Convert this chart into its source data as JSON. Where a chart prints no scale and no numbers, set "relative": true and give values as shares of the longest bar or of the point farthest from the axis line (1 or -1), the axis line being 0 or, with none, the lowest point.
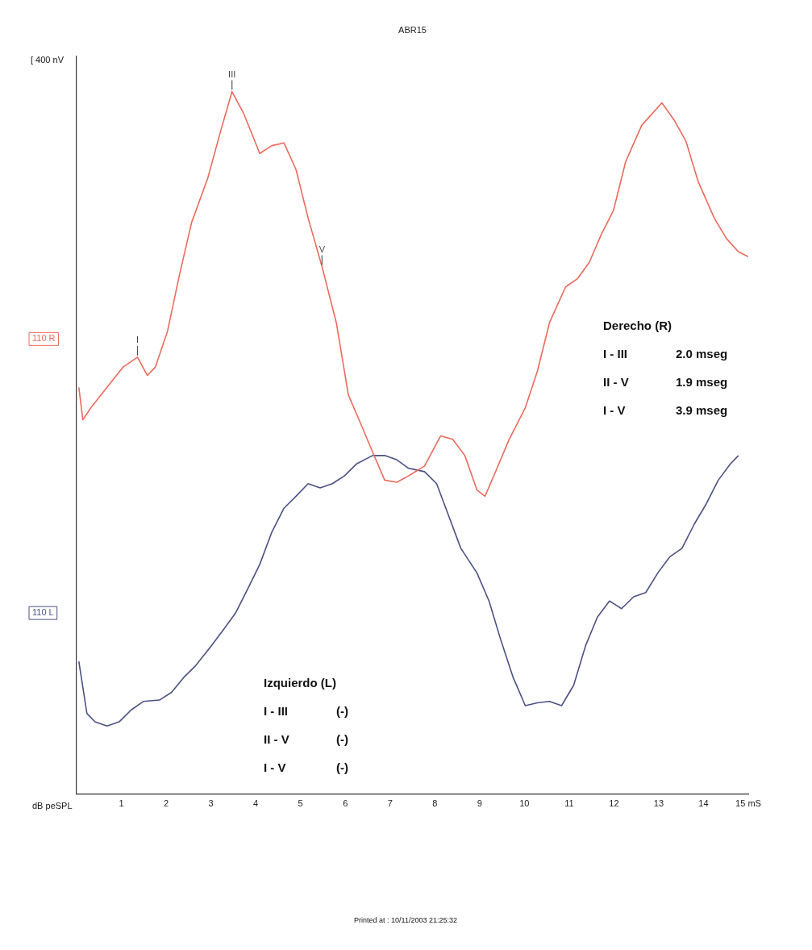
{
  "chart_data": {
    "type": "line",
    "title": "ABR15",
    "relative": true,
    "legend": false,
    "grid": false,
    "marker": "none",
    "line_style": "solid",
    "xlim": [
      0,
      15
    ],
    "xticks": [
      1,
      2,
      3,
      4,
      5,
      6,
      7,
      8,
      9,
      10,
      11,
      12,
      13,
      14,
      {
        "value": 15,
        "label": "15 mS"
      }
    ],
    "series": [
      {
        "name": "110 R",
        "color": "#ec6a5c",
        "x": [
          0.05,
          0.14,
          0.32,
          0.68,
          1.04,
          1.36,
          1.58,
          1.76,
          2.03,
          2.3,
          2.57,
          2.93,
          3.2,
          3.47,
          3.73,
          4.09,
          4.36,
          4.63,
          4.9,
          5.17,
          5.48,
          5.8,
          6.07,
          6.34,
          6.61,
          6.88,
          7.15,
          7.41,
          7.77,
          8.13,
          8.4,
          8.67,
          8.94,
          9.12,
          9.39,
          9.66,
          10.02,
          10.29,
          10.56,
          10.92,
          11.19,
          11.45,
          11.72,
          11.99,
          12.26,
          12.62,
          13.07,
          13.34,
          13.61,
          13.88,
          14.24,
          14.51,
          14.78,
          15
        ],
        "values": [
          0.579,
          0.533,
          0.55,
          0.579,
          0.608,
          0.622,
          0.596,
          0.608,
          0.659,
          0.74,
          0.814,
          0.877,
          0.94,
          1,
          0.969,
          0.912,
          0.923,
          0.927,
          0.889,
          0.82,
          0.751,
          0.671,
          0.568,
          0.528,
          0.487,
          0.447,
          0.444,
          0.453,
          0.467,
          0.51,
          0.505,
          0.482,
          0.433,
          0.424,
          0.464,
          0.505,
          0.55,
          0.602,
          0.671,
          0.722,
          0.734,
          0.757,
          0.797,
          0.831,
          0.9,
          0.952,
          0.984,
          0.96,
          0.929,
          0.872,
          0.82,
          0.791,
          0.772,
          0.765
        ]
      },
      {
        "name": "110 L",
        "color": "#4b5183",
        "x": [
          0.05,
          0.23,
          0.41,
          0.68,
          0.95,
          1.22,
          1.49,
          1.85,
          2.12,
          2.39,
          2.66,
          3.02,
          3.29,
          3.55,
          3.82,
          4.09,
          4.36,
          4.63,
          4.9,
          5.17,
          5.44,
          5.71,
          5.98,
          6.25,
          6.61,
          6.88,
          7.15,
          7.41,
          7.77,
          8.04,
          8.31,
          8.58,
          8.94,
          9.21,
          9.48,
          9.75,
          10.02,
          10.29,
          10.56,
          10.83,
          11.1,
          11.37,
          11.63,
          11.9,
          12.17,
          12.44,
          12.71,
          12.98,
          13.25,
          13.52,
          13.79,
          14.06,
          14.33,
          14.6,
          14.78
        ],
        "values": [
          0.189,
          0.115,
          0.103,
          0.097,
          0.103,
          0.12,
          0.132,
          0.134,
          0.145,
          0.166,
          0.183,
          0.212,
          0.235,
          0.258,
          0.292,
          0.327,
          0.373,
          0.407,
          0.424,
          0.442,
          0.436,
          0.442,
          0.453,
          0.47,
          0.482,
          0.482,
          0.476,
          0.464,
          0.459,
          0.442,
          0.396,
          0.35,
          0.315,
          0.275,
          0.218,
          0.166,
          0.126,
          0.13,
          0.132,
          0.126,
          0.155,
          0.212,
          0.252,
          0.275,
          0.264,
          0.281,
          0.287,
          0.315,
          0.338,
          0.35,
          0.384,
          0.413,
          0.447,
          0.47,
          0.482
        ]
      }
    ],
    "annotations": [
      "[ 400 nV",
      "dB peSPL",
      "Printed at : 10/11/2003 21:25:32",
      {
        "text": "I",
        "x": 1.36,
        "y": 0.622
      },
      {
        "text": "III",
        "x": 3.47,
        "y": 1
      },
      {
        "text": "V",
        "x": 5.48,
        "y": 0.751
      },
      "Derecho (R)",
      "I - III",
      "2.0 mseg",
      "II - V",
      "1.9 mseg",
      "I - V",
      "3.9 mseg",
      "Izquierdo (L)",
      "I - III",
      "(-)",
      "II - V",
      "(-)",
      "I - V",
      "(-)"
    ]
  }
}
